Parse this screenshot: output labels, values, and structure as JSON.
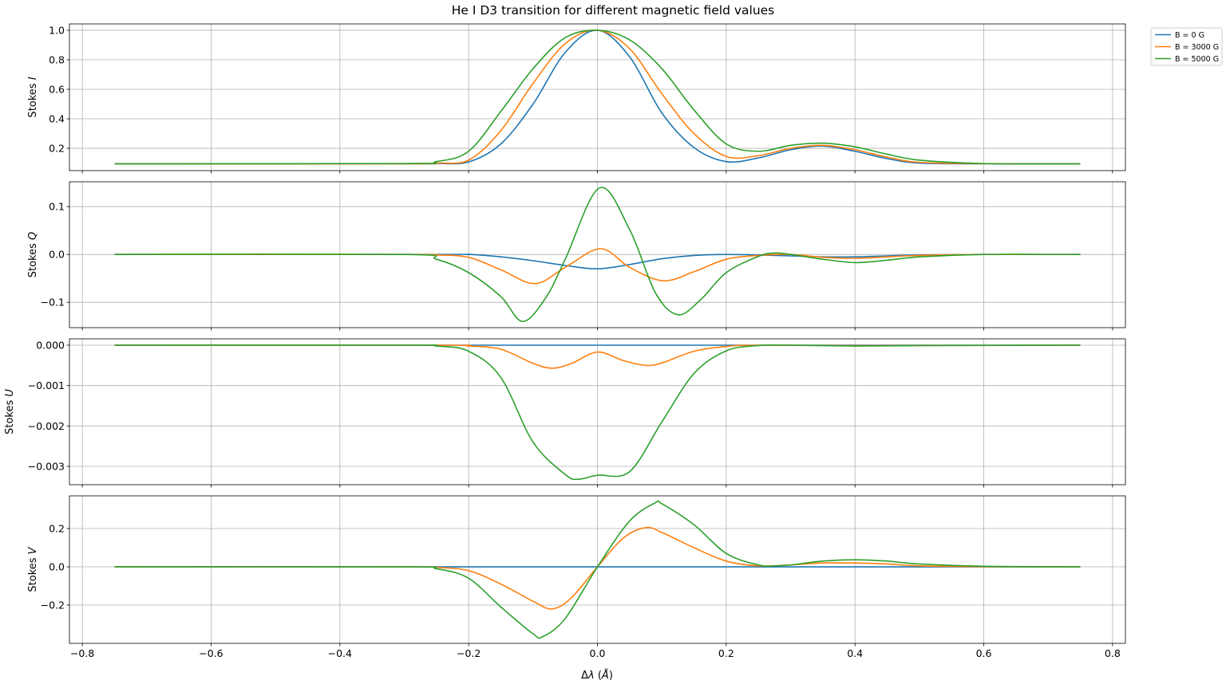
{
  "chart_data": {
    "type": "line",
    "title": "He I D3 transition for different magnetic field values",
    "xlabel_prefix": "Δ",
    "xlabel_symbol": "λ",
    "xlabel_unit_open": " (",
    "xlabel_unit": "Å",
    "xlabel_unit_close": ")",
    "xlim": [
      -0.82,
      0.82
    ],
    "xticks": [
      -0.8,
      -0.6,
      -0.4,
      -0.2,
      0.0,
      0.2,
      0.4,
      0.6,
      0.8
    ],
    "xtick_labels": [
      "−0.8",
      "−0.6",
      "−0.4",
      "−0.2",
      "0.0",
      "0.2",
      "0.4",
      "0.6",
      "0.8"
    ],
    "grid": true,
    "legend": {
      "placement": "outside-top-right",
      "entries": [
        "B = 0 G",
        "B = 3000 G",
        "B = 5000 G"
      ],
      "colors": [
        "#1f77b4",
        "#ff7f0e",
        "#2ca02c"
      ]
    },
    "panels": [
      {
        "ylabel_prefix": "Stokes ",
        "ylabel_symbol": "I",
        "ylim": [
          0.049,
          1.043
        ],
        "yticks": [
          0.2,
          0.4,
          0.6,
          0.8,
          1.0
        ],
        "ytick_labels": [
          "0.2",
          "0.4",
          "0.6",
          "0.8",
          "1.0"
        ],
        "series": [
          {
            "name": "B = 0 G",
            "points": [
              [
                -0.75,
                0.095
              ],
              [
                -0.3,
                0.095
              ],
              [
                -0.25,
                0.097
              ],
              [
                -0.2,
                0.108
              ],
              [
                -0.15,
                0.23
              ],
              [
                -0.1,
                0.5
              ],
              [
                -0.05,
                0.85
              ],
              [
                0,
                1.0
              ],
              [
                0.05,
                0.82
              ],
              [
                0.1,
                0.44
              ],
              [
                0.15,
                0.205
              ],
              [
                0.2,
                0.11
              ],
              [
                0.25,
                0.135
              ],
              [
                0.3,
                0.19
              ],
              [
                0.35,
                0.215
              ],
              [
                0.4,
                0.18
              ],
              [
                0.45,
                0.13
              ],
              [
                0.5,
                0.1
              ],
              [
                0.6,
                0.095
              ],
              [
                0.75,
                0.095
              ]
            ]
          },
          {
            "name": "B = 3000 G",
            "points": [
              [
                -0.75,
                0.095
              ],
              [
                -0.3,
                0.095
              ],
              [
                -0.25,
                0.1
              ],
              [
                -0.2,
                0.12
              ],
              [
                -0.15,
                0.32
              ],
              [
                -0.1,
                0.64
              ],
              [
                -0.05,
                0.91
              ],
              [
                0,
                1.0
              ],
              [
                0.05,
                0.875
              ],
              [
                0.1,
                0.57
              ],
              [
                0.15,
                0.3
              ],
              [
                0.2,
                0.145
              ],
              [
                0.25,
                0.15
              ],
              [
                0.3,
                0.2
              ],
              [
                0.35,
                0.22
              ],
              [
                0.4,
                0.19
              ],
              [
                0.45,
                0.14
              ],
              [
                0.5,
                0.105
              ],
              [
                0.6,
                0.096
              ],
              [
                0.75,
                0.095
              ]
            ]
          },
          {
            "name": "B = 5000 G",
            "points": [
              [
                -0.75,
                0.095
              ],
              [
                -0.3,
                0.097
              ],
              [
                -0.25,
                0.11
              ],
              [
                -0.2,
                0.18
              ],
              [
                -0.15,
                0.45
              ],
              [
                -0.1,
                0.74
              ],
              [
                -0.05,
                0.95
              ],
              [
                0,
                1.0
              ],
              [
                0.05,
                0.935
              ],
              [
                0.1,
                0.74
              ],
              [
                0.15,
                0.46
              ],
              [
                0.2,
                0.23
              ],
              [
                0.25,
                0.18
              ],
              [
                0.3,
                0.22
              ],
              [
                0.35,
                0.235
              ],
              [
                0.4,
                0.21
              ],
              [
                0.45,
                0.16
              ],
              [
                0.5,
                0.12
              ],
              [
                0.6,
                0.097
              ],
              [
                0.75,
                0.095
              ]
            ]
          }
        ]
      },
      {
        "ylabel_prefix": "Stokes ",
        "ylabel_symbol": "Q",
        "ylim": [
          -0.153,
          0.152
        ],
        "yticks": [
          -0.1,
          0.0,
          0.1
        ],
        "ytick_labels": [
          "−0.1",
          "0.0",
          "0.1"
        ],
        "series": [
          {
            "name": "B = 0 G",
            "points": [
              [
                -0.75,
                0
              ],
              [
                -0.25,
                0
              ],
              [
                -0.2,
                0
              ],
              [
                -0.15,
                -0.005
              ],
              [
                -0.1,
                -0.013
              ],
              [
                -0.05,
                -0.023
              ],
              [
                0,
                -0.03
              ],
              [
                0.05,
                -0.021
              ],
              [
                0.1,
                -0.009
              ],
              [
                0.15,
                -0.002
              ],
              [
                0.2,
                0
              ],
              [
                0.25,
                -0.001
              ],
              [
                0.3,
                -0.003
              ],
              [
                0.35,
                -0.005
              ],
              [
                0.4,
                -0.005
              ],
              [
                0.45,
                -0.003
              ],
              [
                0.5,
                -0.001
              ],
              [
                0.6,
                0
              ],
              [
                0.75,
                0
              ]
            ]
          },
          {
            "name": "B = 3000 G",
            "points": [
              [
                -0.75,
                0
              ],
              [
                -0.3,
                0
              ],
              [
                -0.25,
                -0.001
              ],
              [
                -0.2,
                -0.006
              ],
              [
                -0.15,
                -0.032
              ],
              [
                -0.097,
                -0.061
              ],
              [
                -0.05,
                -0.027
              ],
              [
                0.005,
                0.012
              ],
              [
                0.05,
                -0.027
              ],
              [
                0.102,
                -0.055
              ],
              [
                0.15,
                -0.036
              ],
              [
                0.2,
                -0.01
              ],
              [
                0.25,
                -0.002
              ],
              [
                0.3,
                0
              ],
              [
                0.35,
                -0.006
              ],
              [
                0.4,
                -0.008
              ],
              [
                0.45,
                -0.005
              ],
              [
                0.5,
                -0.002
              ],
              [
                0.6,
                0
              ],
              [
                0.75,
                0
              ]
            ]
          },
          {
            "name": "B = 5000 G",
            "points": [
              [
                -0.75,
                0
              ],
              [
                -0.3,
                0
              ],
              [
                -0.25,
                -0.01
              ],
              [
                -0.2,
                -0.038
              ],
              [
                -0.15,
                -0.088
              ],
              [
                -0.116,
                -0.14
              ],
              [
                -0.08,
                -0.09
              ],
              [
                -0.05,
                -0.01
              ],
              [
                0.003,
                0.139
              ],
              [
                0.05,
                0.052
              ],
              [
                0.09,
                -0.08
              ],
              [
                0.125,
                -0.126
              ],
              [
                0.16,
                -0.095
              ],
              [
                0.2,
                -0.038
              ],
              [
                0.25,
                -0.004
              ],
              [
                0.275,
                0.003
              ],
              [
                0.3,
                0
              ],
              [
                0.35,
                -0.01
              ],
              [
                0.4,
                -0.017
              ],
              [
                0.45,
                -0.012
              ],
              [
                0.5,
                -0.005
              ],
              [
                0.6,
                0
              ],
              [
                0.75,
                0
              ]
            ]
          }
        ]
      },
      {
        "ylabel_prefix": "Stokes ",
        "ylabel_symbol": "U",
        "ylim": [
          -0.003454,
          0.000158
        ],
        "yticks": [
          -0.003,
          -0.002,
          -0.001,
          0.0
        ],
        "ytick_labels": [
          "−0.003",
          "−0.002",
          "−0.001",
          "0.000"
        ],
        "series": [
          {
            "name": "B = 0 G",
            "points": [
              [
                -0.75,
                0
              ],
              [
                0,
                0
              ],
              [
                0.75,
                0
              ]
            ]
          },
          {
            "name": "B = 3000 G",
            "points": [
              [
                -0.75,
                0
              ],
              [
                -0.25,
                0
              ],
              [
                -0.2,
                -2e-05
              ],
              [
                -0.15,
                -0.0001
              ],
              [
                -0.1,
                -0.00045
              ],
              [
                -0.07,
                -0.00057
              ],
              [
                -0.04,
                -0.00045
              ],
              [
                0,
                -0.00017
              ],
              [
                0.04,
                -0.00038
              ],
              [
                0.075,
                -0.0005
              ],
              [
                0.1,
                -0.00044
              ],
              [
                0.15,
                -0.00015
              ],
              [
                0.2,
                -3e-05
              ],
              [
                0.25,
                0
              ],
              [
                0.4,
                -1e-05
              ],
              [
                0.75,
                0
              ]
            ]
          },
          {
            "name": "B = 5000 G",
            "points": [
              [
                -0.75,
                0
              ],
              [
                -0.3,
                0
              ],
              [
                -0.25,
                -2e-05
              ],
              [
                -0.2,
                -0.00015
              ],
              [
                -0.15,
                -0.0008
              ],
              [
                -0.1,
                -0.0024
              ],
              [
                -0.05,
                -0.0032
              ],
              [
                -0.03,
                -0.00332
              ],
              [
                0,
                -0.00322
              ],
              [
                0.05,
                -0.00313
              ],
              [
                0.1,
                -0.0019
              ],
              [
                0.15,
                -0.0007
              ],
              [
                0.2,
                -0.00014
              ],
              [
                0.25,
                -1e-05
              ],
              [
                0.3,
                0
              ],
              [
                0.4,
                -2e-05
              ],
              [
                0.5,
                -1e-05
              ],
              [
                0.75,
                0
              ]
            ]
          }
        ]
      },
      {
        "ylabel_prefix": "Stokes ",
        "ylabel_symbol": "V",
        "ylim": [
          -0.4,
          0.371
        ],
        "yticks": [
          -0.2,
          0.0,
          0.2
        ],
        "ytick_labels": [
          "−0.2",
          "0.0",
          "0.2"
        ],
        "series": [
          {
            "name": "B = 0 G",
            "points": [
              [
                -0.75,
                0
              ],
              [
                0,
                0
              ],
              [
                0.75,
                0
              ]
            ]
          },
          {
            "name": "B = 3000 G",
            "points": [
              [
                -0.75,
                0
              ],
              [
                -0.3,
                0
              ],
              [
                -0.25,
                -0.003
              ],
              [
                -0.2,
                -0.02
              ],
              [
                -0.15,
                -0.09
              ],
              [
                -0.1,
                -0.18
              ],
              [
                -0.07,
                -0.22
              ],
              [
                -0.04,
                -0.16
              ],
              [
                0,
                0
              ],
              [
                0.04,
                0.15
              ],
              [
                0.075,
                0.205
              ],
              [
                0.1,
                0.18
              ],
              [
                0.15,
                0.1
              ],
              [
                0.2,
                0.03
              ],
              [
                0.25,
                0.005
              ],
              [
                0.3,
                0.01
              ],
              [
                0.35,
                0.02
              ],
              [
                0.4,
                0.02
              ],
              [
                0.45,
                0.015
              ],
              [
                0.5,
                0.005
              ],
              [
                0.6,
                0.001
              ],
              [
                0.75,
                0
              ]
            ]
          },
          {
            "name": "B = 5000 G",
            "points": [
              [
                -0.75,
                0
              ],
              [
                -0.3,
                0
              ],
              [
                -0.25,
                -0.01
              ],
              [
                -0.2,
                -0.06
              ],
              [
                -0.15,
                -0.21
              ],
              [
                -0.1,
                -0.35
              ],
              [
                -0.085,
                -0.365
              ],
              [
                -0.05,
                -0.27
              ],
              [
                0,
                0
              ],
              [
                0.05,
                0.24
              ],
              [
                0.09,
                0.335
              ],
              [
                0.1,
                0.33
              ],
              [
                0.15,
                0.22
              ],
              [
                0.2,
                0.07
              ],
              [
                0.25,
                0.01
              ],
              [
                0.275,
                0.005
              ],
              [
                0.3,
                0.01
              ],
              [
                0.35,
                0.03
              ],
              [
                0.4,
                0.037
              ],
              [
                0.45,
                0.03
              ],
              [
                0.5,
                0.015
              ],
              [
                0.6,
                0.003
              ],
              [
                0.75,
                0
              ]
            ]
          }
        ]
      }
    ]
  }
}
